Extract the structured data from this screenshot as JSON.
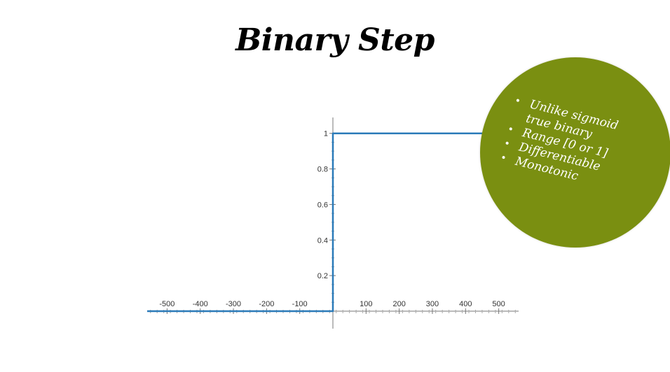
{
  "slide": {
    "title": "Binary Step",
    "bullets": [
      "Unlike sigmoid true binary",
      "Range [0 or 1]",
      "Differentiable",
      "Monotonic"
    ],
    "bubble_color": "#7a8f11"
  },
  "chart_data": {
    "type": "line",
    "title": "",
    "xlabel": "",
    "ylabel": "",
    "x_ticks": [
      -500,
      -400,
      -300,
      -200,
      -100,
      100,
      200,
      300,
      400,
      500
    ],
    "y_ticks": [
      0.2,
      0.4,
      0.6,
      0.8,
      1
    ],
    "y_tick_labels": [
      "0.2",
      "0.4",
      "0.6",
      "0.8",
      "1"
    ],
    "xlim": [
      -560,
      560
    ],
    "ylim": [
      0,
      1.05
    ],
    "grid": false,
    "series": [
      {
        "color": "#2b7bb9",
        "x": [
          -560,
          0,
          0,
          560
        ],
        "y": [
          0,
          0,
          1,
          1
        ]
      }
    ]
  }
}
